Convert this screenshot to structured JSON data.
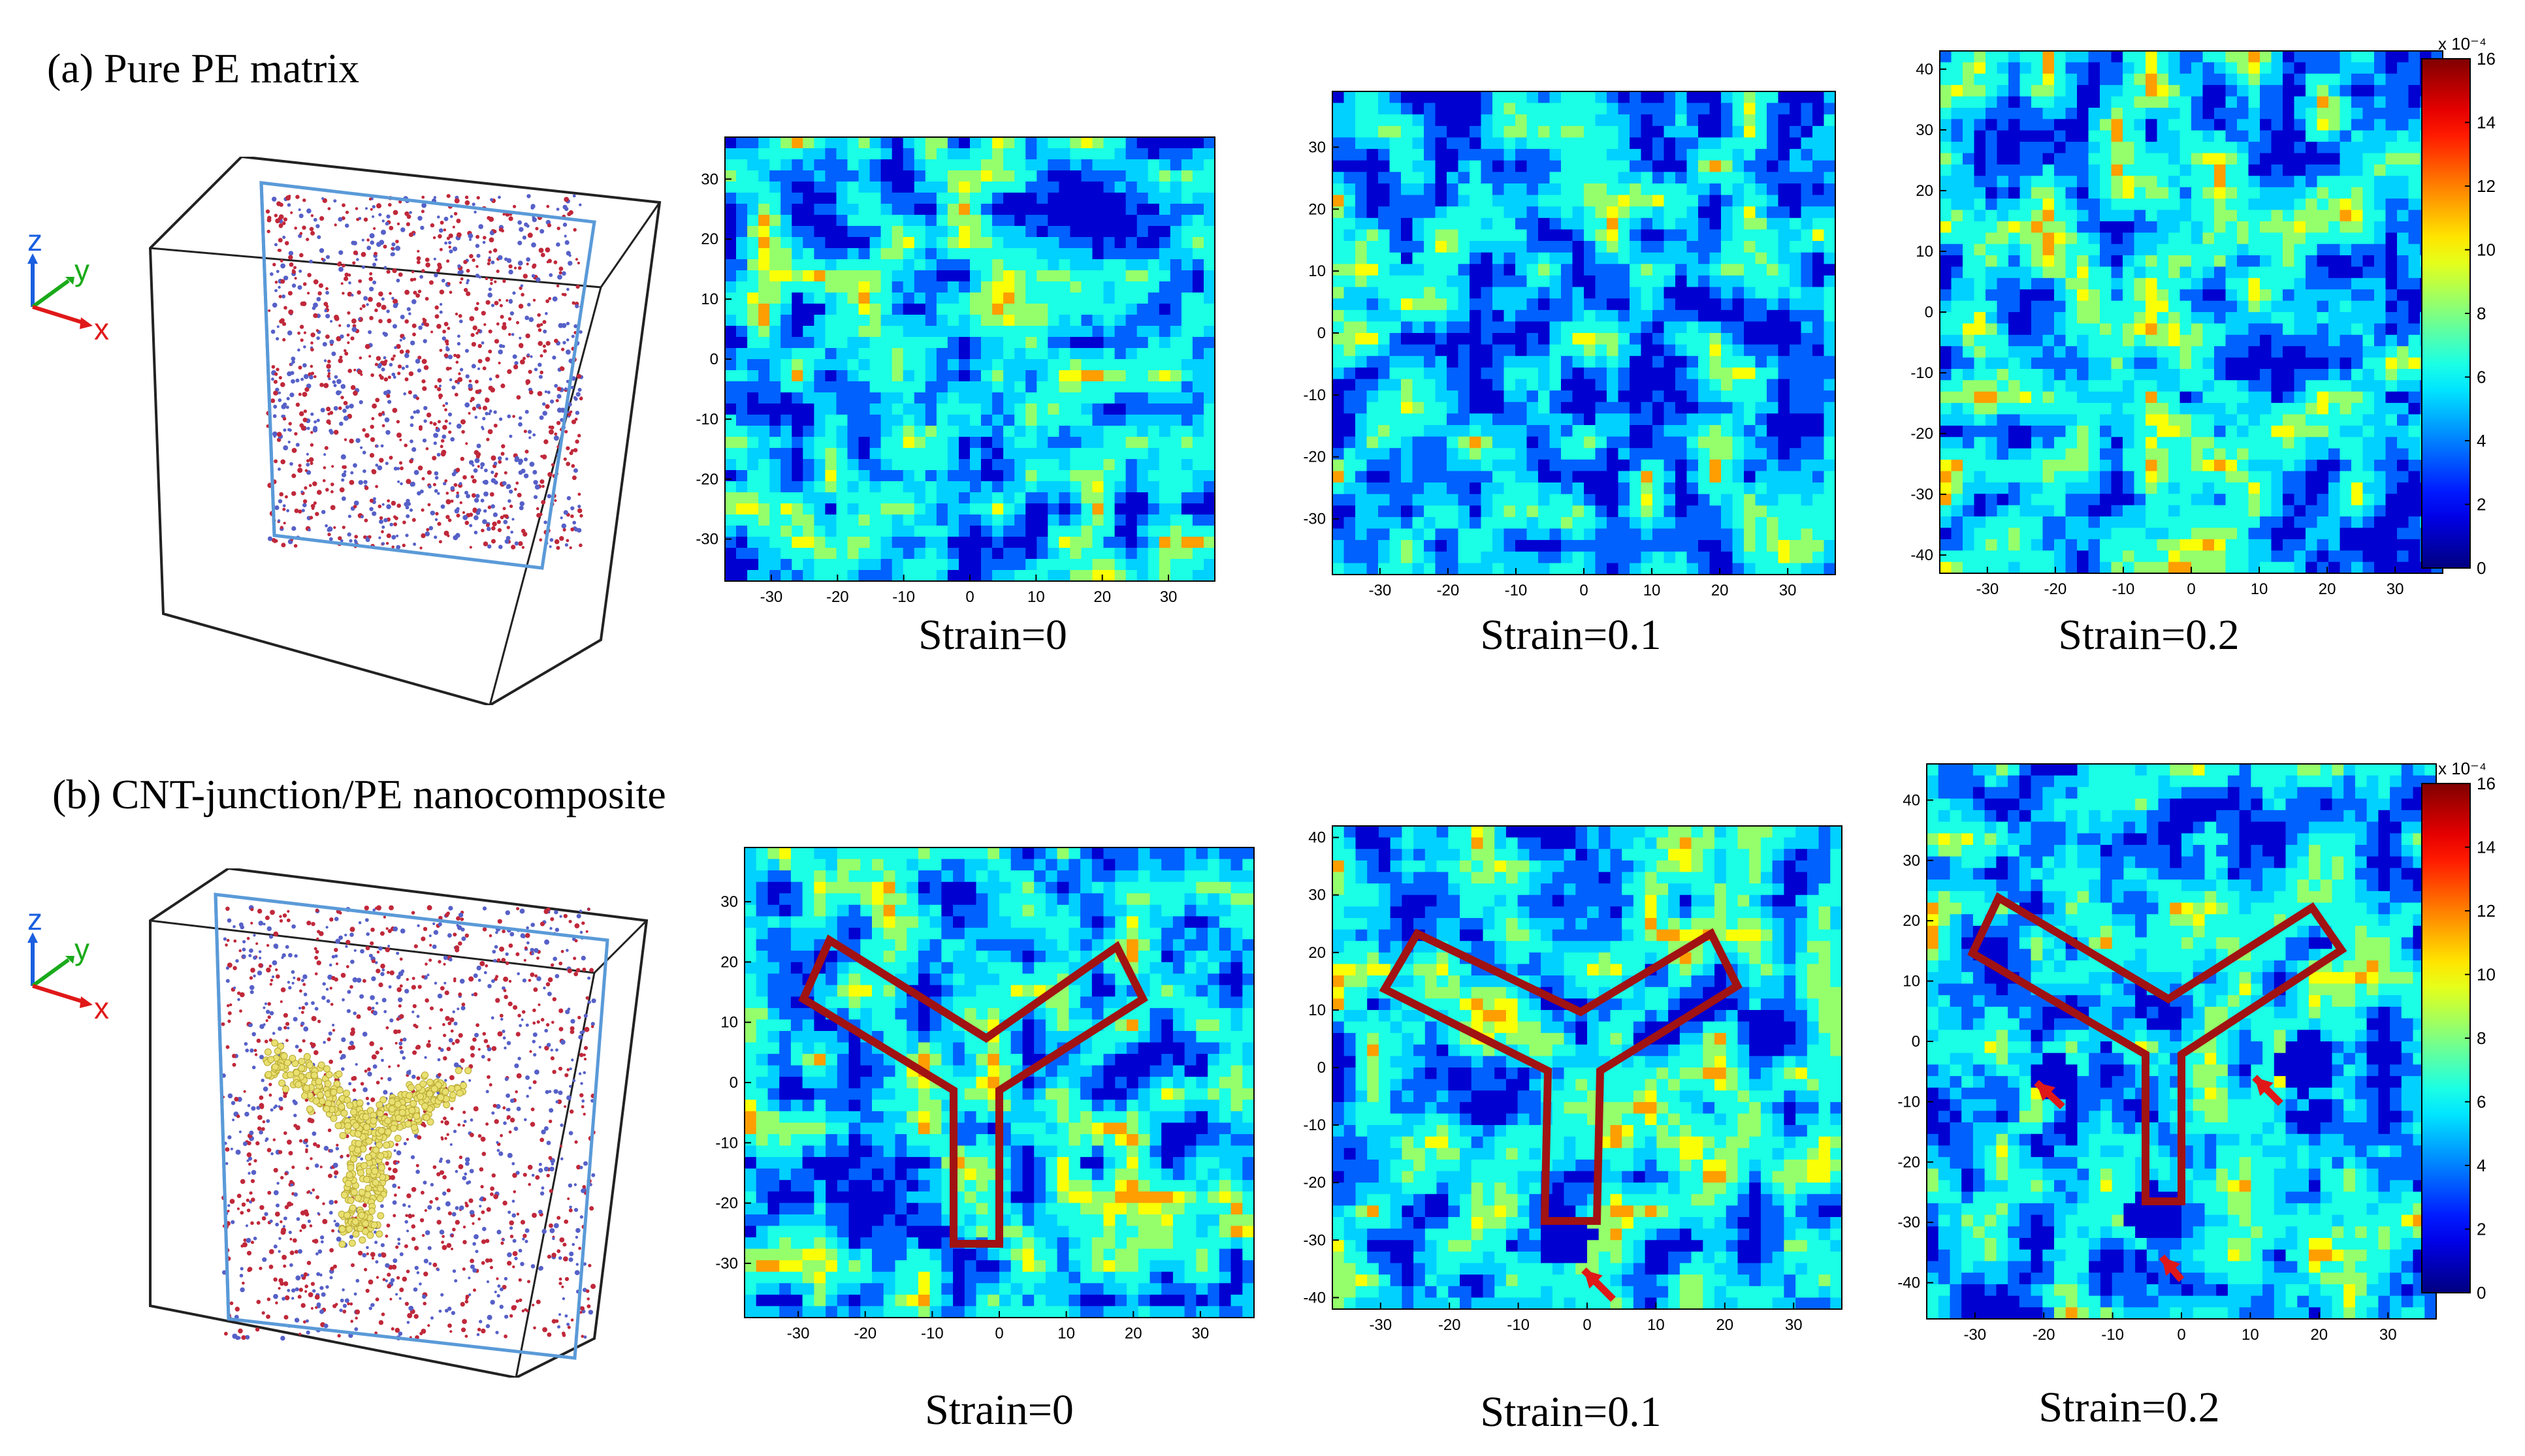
{
  "panel_a": {
    "title": "(a) Pure PE matrix",
    "captions": [
      "Strain=0",
      "Strain=0.1",
      "Strain=0.2"
    ],
    "xticks": [
      "-30",
      "-20",
      "-10",
      "0",
      "10",
      "20",
      "30"
    ],
    "yticks": [
      [
        "30",
        "20",
        "10",
        "0",
        "-10",
        "-20",
        "-30"
      ],
      [
        "30",
        "20",
        "10",
        "0",
        "-10",
        "-20",
        "-30"
      ],
      [
        "40",
        "30",
        "20",
        "10",
        "0",
        "-10",
        "-20",
        "-30",
        "-40"
      ]
    ],
    "colorbar": {
      "exponent": "x 10⁻⁴",
      "ticks": [
        "16",
        "14",
        "12",
        "10",
        "8",
        "6",
        "4",
        "2",
        "0"
      ]
    }
  },
  "panel_b": {
    "title": "(b) CNT-junction/PE nanocomposite",
    "captions": [
      "Strain=0",
      "Strain=0.1",
      "Strain=0.2"
    ],
    "xticks": [
      "-30",
      "-20",
      "-10",
      "0",
      "10",
      "20",
      "30"
    ],
    "yticks": [
      [
        "30",
        "20",
        "10",
        "0",
        "-10",
        "-20",
        "-30"
      ],
      [
        "40",
        "30",
        "20",
        "10",
        "0",
        "-10",
        "-20",
        "-30",
        "-40"
      ],
      [
        "40",
        "30",
        "20",
        "10",
        "0",
        "-10",
        "-20",
        "-30",
        "-40"
      ]
    ],
    "colorbar": {
      "exponent": "x 10⁻⁴",
      "ticks": [
        "16",
        "14",
        "12",
        "10",
        "8",
        "6",
        "4",
        "2",
        "0"
      ]
    }
  },
  "axes_labels": {
    "z": "z",
    "y": "y",
    "x": "x"
  },
  "colors": {
    "outline": "#a11212",
    "arrow": "#e01818",
    "z_axis": "#1a5fe0",
    "y_axis": "#1aaa1a",
    "x_axis": "#e01818",
    "box_frame": "#5a9ad8",
    "cnt": "#e8e070"
  }
}
